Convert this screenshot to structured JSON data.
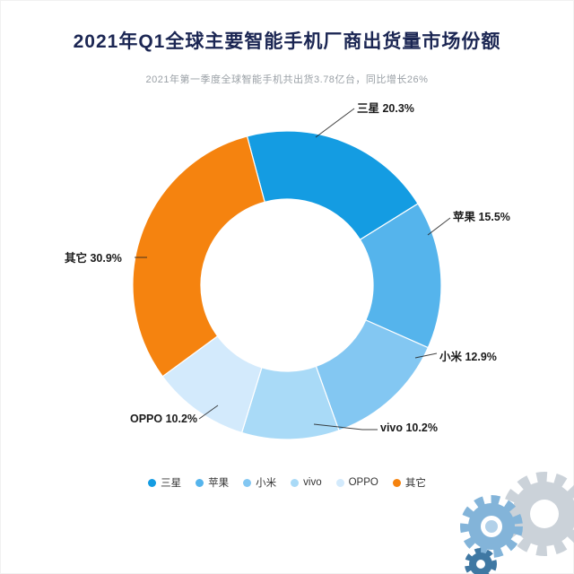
{
  "header": {
    "title": "2021年Q1全球主要智能手机厂商出货量市场份额",
    "subtitle": "2021年第一季度全球智能手机共出货3.78亿台，同比增长26%"
  },
  "chart_data": {
    "type": "pie",
    "donut": true,
    "title": "2021年Q1全球主要智能手机厂商出货量市场份额",
    "subtitle": "2021年第一季度全球智能手机共出货3.78亿台，同比增长26%",
    "start_angle_deg": -15,
    "categories": [
      "三星",
      "苹果",
      "小米",
      "vivo",
      "OPPO",
      "其它"
    ],
    "slice_names": [
      "samsung",
      "apple",
      "xiaomi",
      "vivo",
      "oppo",
      "others"
    ],
    "values": [
      20.3,
      15.5,
      12.9,
      10.2,
      10.2,
      30.9
    ],
    "unit": "%",
    "colors": [
      "#149ce2",
      "#55b4ec",
      "#83c7f2",
      "#a9daf7",
      "#d3eafc",
      "#f5830f"
    ],
    "labels": [
      "三星 20.3%",
      "苹果 15.5%",
      "小米 12.9%",
      "vivo 10.2%",
      "OPPO 10.2%",
      "其它 30.9%"
    ],
    "legend": [
      "三星",
      "苹果",
      "小米",
      "vivo",
      "OPPO",
      "其它"
    ],
    "legend_position": "bottom"
  },
  "watermark": {
    "icon": "gears-logo"
  }
}
